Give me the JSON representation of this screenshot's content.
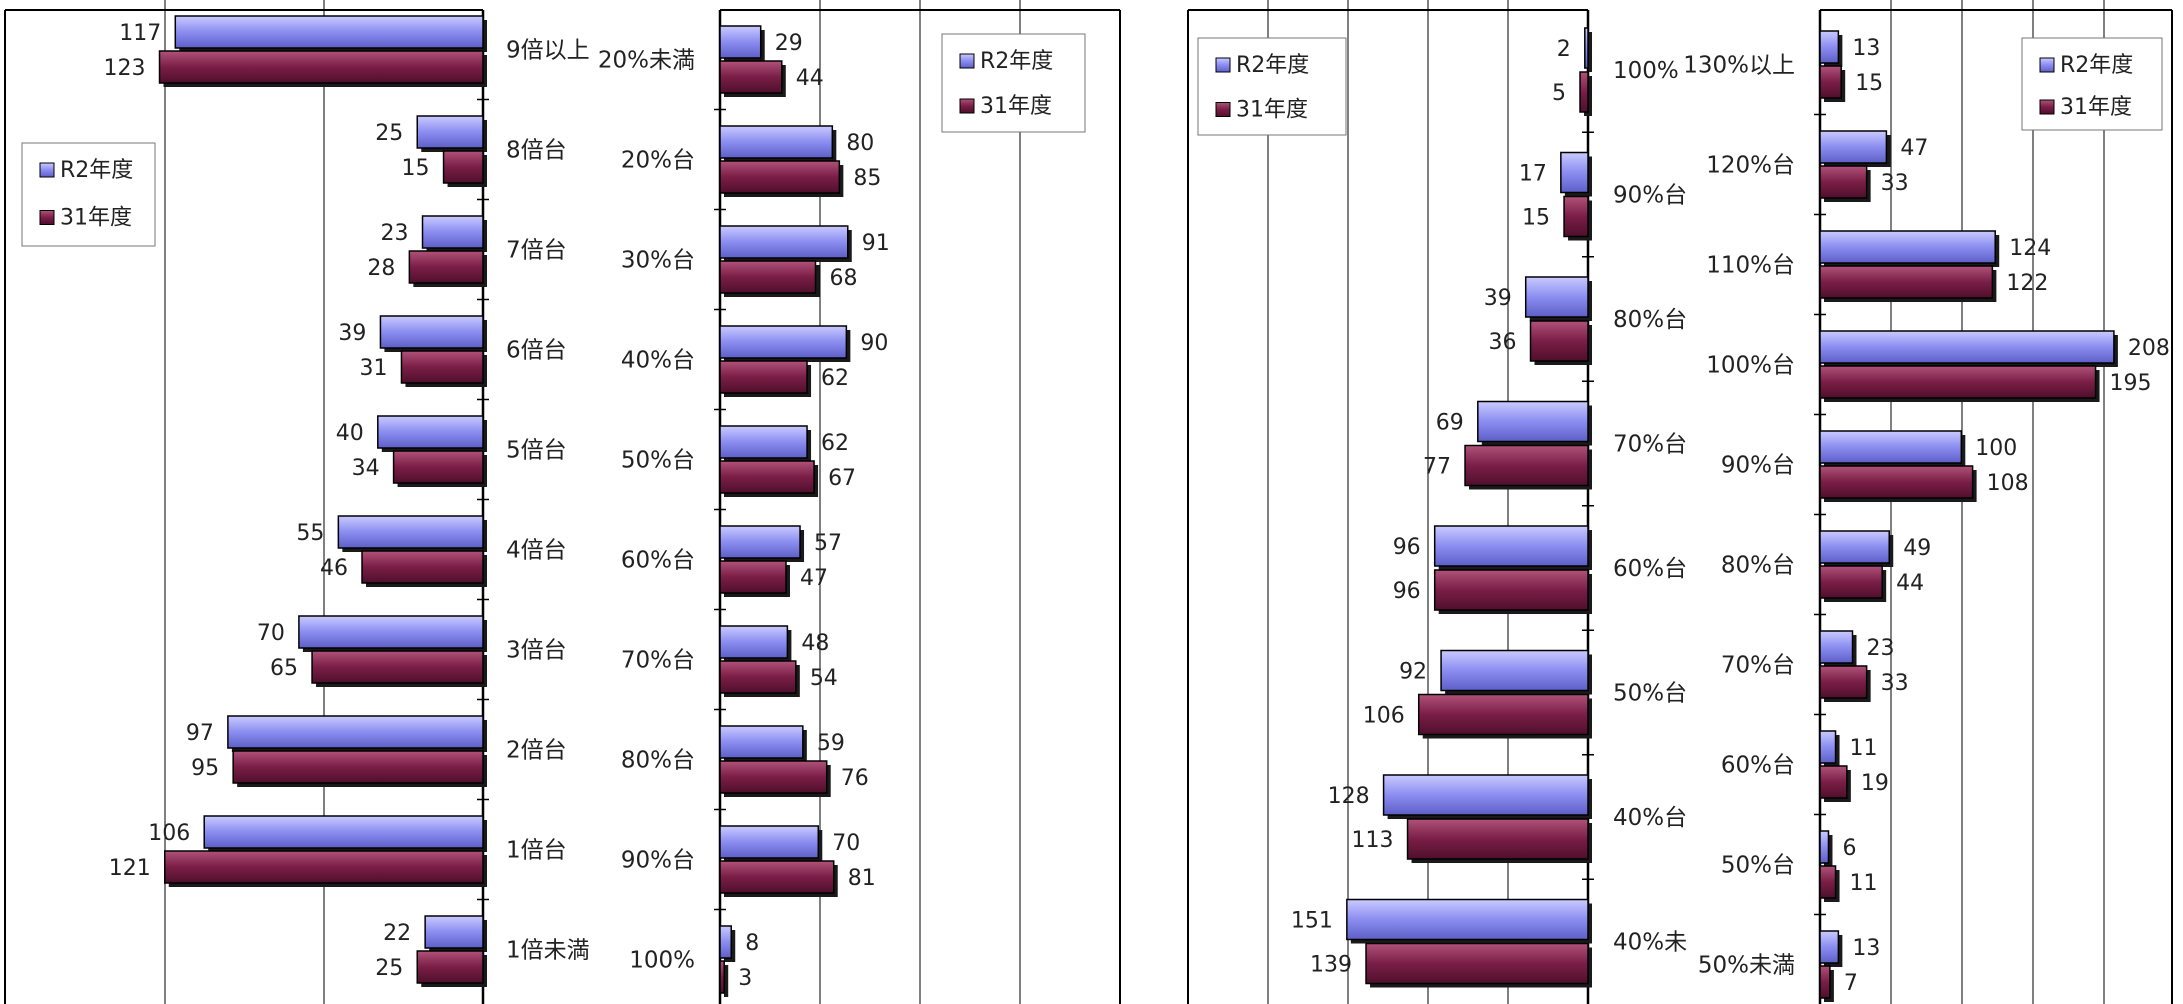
{
  "colors": {
    "r2": "#8b8df0",
    "y31": "#7a1e47",
    "edge": "#000000",
    "grid": "#000000"
  },
  "legend": {
    "r2": "R2年度",
    "y31": "31年度"
  },
  "chart_data": [
    {
      "type": "bar",
      "orientation": "horizontal",
      "direction": "left",
      "categories": [
        "9倍以上",
        "8倍台",
        "7倍台",
        "6倍台",
        "5倍台",
        "4倍台",
        "3倍台",
        "2倍台",
        "1倍台",
        "1倍未満"
      ],
      "series": [
        {
          "name": "R2年度",
          "values": [
            117,
            25,
            23,
            39,
            40,
            55,
            70,
            97,
            106,
            22
          ]
        },
        {
          "name": "31年度",
          "values": [
            123,
            15,
            28,
            31,
            34,
            46,
            65,
            95,
            121,
            25
          ]
        }
      ],
      "xlim": [
        0,
        150
      ],
      "grid": true,
      "legend_position": "left"
    },
    {
      "type": "bar",
      "orientation": "horizontal",
      "direction": "right",
      "categories": [
        "20%未満",
        "20%台",
        "30%台",
        "40%台",
        "50%台",
        "60%台",
        "70%台",
        "80%台",
        "90%台",
        "100%"
      ],
      "series": [
        {
          "name": "R2年度",
          "values": [
            29,
            80,
            91,
            90,
            62,
            57,
            48,
            59,
            70,
            8
          ]
        },
        {
          "name": "31年度",
          "values": [
            44,
            85,
            68,
            62,
            67,
            47,
            54,
            76,
            81,
            3
          ]
        }
      ],
      "xlim": [
        0,
        160
      ],
      "grid": true,
      "legend_position": "top-right"
    },
    {
      "type": "bar",
      "orientation": "horizontal",
      "direction": "left",
      "categories": [
        "100%",
        "90%台",
        "80%台",
        "70%台",
        "60%台",
        "50%台",
        "40%台",
        "40%未"
      ],
      "series": [
        {
          "name": "R2年度",
          "values": [
            2,
            17,
            39,
            69,
            96,
            92,
            128,
            151
          ]
        },
        {
          "name": "31年度",
          "values": [
            5,
            15,
            36,
            77,
            96,
            106,
            113,
            139
          ]
        }
      ],
      "xlim": [
        0,
        250
      ],
      "grid": true,
      "legend_position": "top-left"
    },
    {
      "type": "bar",
      "orientation": "horizontal",
      "direction": "right",
      "categories": [
        "130%以上",
        "120%台",
        "110%台",
        "100%台",
        "90%台",
        "80%台",
        "70%台",
        "60%台",
        "50%台",
        "50%未満"
      ],
      "series": [
        {
          "name": "R2年度",
          "values": [
            13,
            47,
            124,
            208,
            100,
            49,
            23,
            11,
            6,
            13
          ]
        },
        {
          "name": "31年度",
          "values": [
            15,
            33,
            122,
            195,
            108,
            44,
            33,
            19,
            11,
            7
          ]
        }
      ],
      "xlim": [
        0,
        250
      ],
      "grid": true,
      "legend_position": "top-right"
    }
  ]
}
